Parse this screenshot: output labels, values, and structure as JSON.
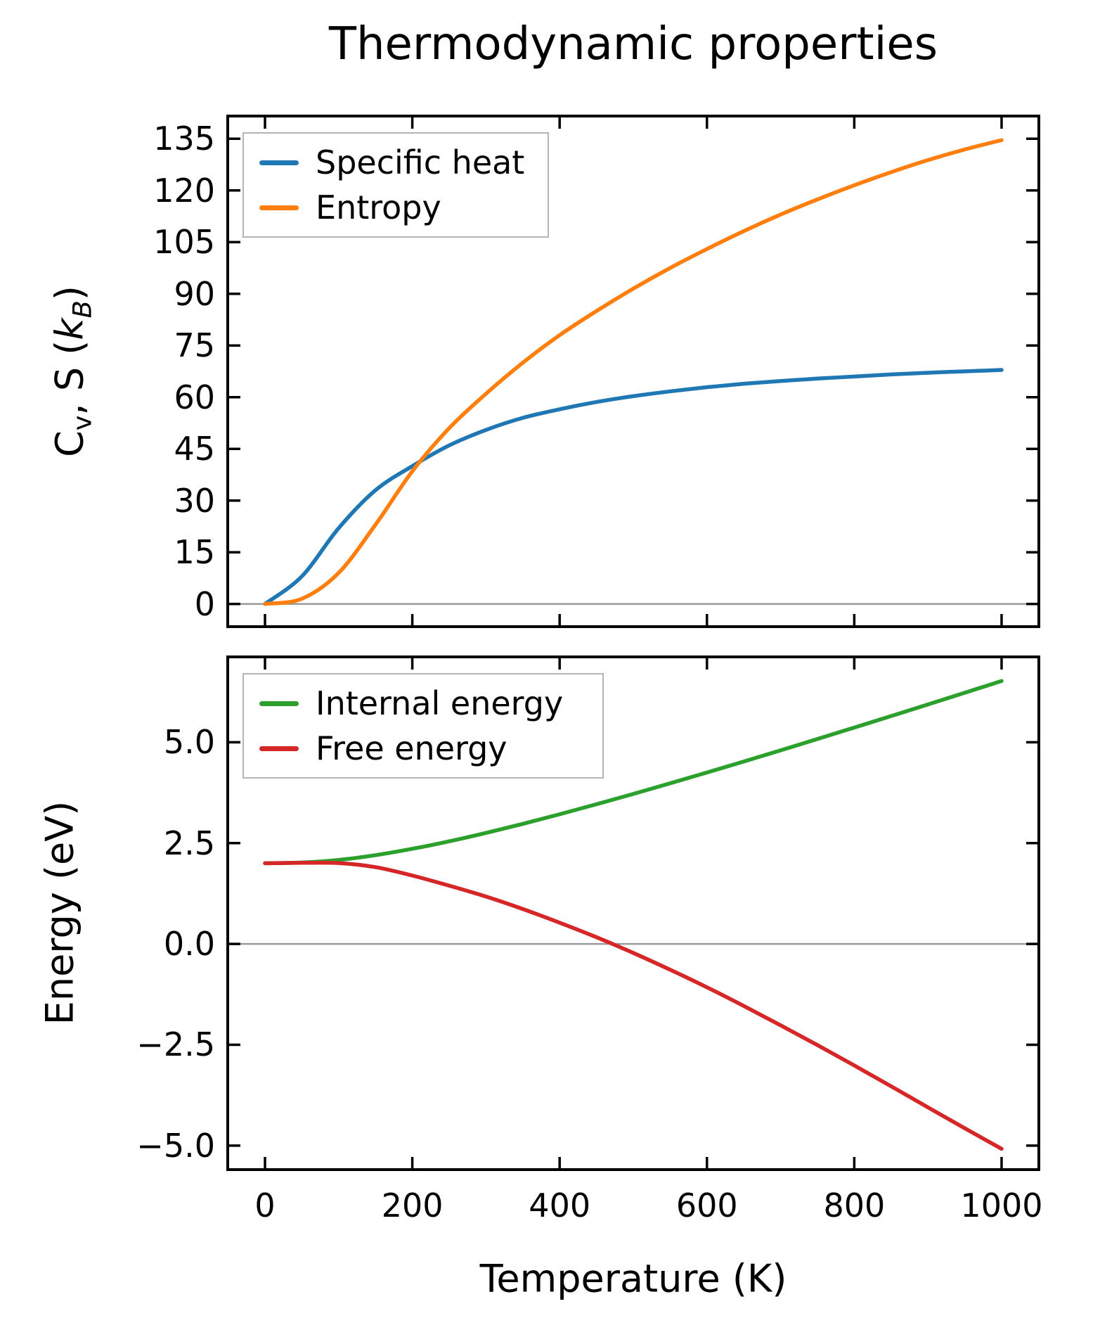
{
  "title": "Thermodynamic properties",
  "labels": {
    "xlabel": "Temperature (K)",
    "ylabel_bottom": "Energy (eV)",
    "ylabel_top": {
      "p1": "C",
      "s1": "v",
      "p2": ", S (",
      "p3": "k",
      "s2": "B",
      "p4": ")"
    }
  },
  "style_colors": {
    "spine": "#000000",
    "zero_line": "#9b9b9b",
    "legend_border": "#b4b4b4",
    "background": "#ffffff"
  },
  "chart_data": [
    {
      "type": "line",
      "title": "Thermodynamic properties",
      "xlabel": "",
      "ylabel": "C_v, S (k_B)",
      "grid": false,
      "legend_position": "upper left",
      "zero_line": true,
      "xlim": [
        -52.5,
        1052.5
      ],
      "ylim": [
        -7,
        142
      ],
      "xticks": [
        0,
        200,
        400,
        600,
        800,
        1000
      ],
      "xtick_labels": [
        "0",
        "200",
        "400",
        "600",
        "800",
        "1000"
      ],
      "xticks_labeled": false,
      "yticks": [
        0,
        15,
        30,
        45,
        60,
        75,
        90,
        105,
        120,
        135
      ],
      "ytick_labels": [
        "0",
        "15",
        "30",
        "45",
        "60",
        "75",
        "90",
        "105",
        "120",
        "135"
      ],
      "x": [
        0,
        50,
        100,
        150,
        200,
        250,
        300,
        350,
        400,
        450,
        500,
        550,
        600,
        650,
        700,
        750,
        800,
        850,
        900,
        950,
        1000
      ],
      "series": [
        {
          "name": "Specific heat",
          "color": "#1f77b4",
          "values": [
            0,
            8,
            22,
            33,
            40,
            46,
            50.5,
            54,
            56.5,
            58.6,
            60.3,
            61.7,
            62.9,
            63.9,
            64.7,
            65.4,
            66.0,
            66.6,
            67.1,
            67.5,
            67.9
          ]
        },
        {
          "name": "Entropy",
          "color": "#ff7f0e",
          "values": [
            0,
            1.5,
            9,
            23,
            38.5,
            51,
            61,
            70,
            78,
            85,
            91.5,
            97.5,
            103,
            108.2,
            113,
            117.4,
            121.5,
            125.3,
            128.8,
            131.9,
            134.6
          ]
        }
      ]
    },
    {
      "type": "line",
      "title": "",
      "xlabel": "Temperature (K)",
      "ylabel": "Energy (eV)",
      "grid": false,
      "legend_position": "upper left",
      "zero_line": true,
      "xlim": [
        -52.5,
        1052.5
      ],
      "ylim": [
        -5.63,
        7.15
      ],
      "xticks": [
        0,
        200,
        400,
        600,
        800,
        1000
      ],
      "xtick_labels": [
        "0",
        "200",
        "400",
        "600",
        "800",
        "1000"
      ],
      "xticks_labeled": true,
      "yticks": [
        -5,
        -2.5,
        0,
        2.5,
        5
      ],
      "ytick_labels": [
        "−5.0",
        "−2.5",
        "0.0",
        "2.5",
        "5.0"
      ],
      "x": [
        0,
        50,
        100,
        150,
        200,
        250,
        300,
        350,
        400,
        450,
        500,
        550,
        600,
        650,
        700,
        750,
        800,
        850,
        900,
        950,
        1000
      ],
      "series": [
        {
          "name": "Internal energy",
          "color": "#2ca02c",
          "values": [
            2.0,
            2.017,
            2.082,
            2.2,
            2.358,
            2.543,
            2.751,
            2.976,
            3.214,
            3.462,
            3.718,
            3.981,
            4.249,
            4.522,
            4.799,
            5.079,
            5.363,
            5.648,
            5.936,
            6.226,
            6.518
          ]
        },
        {
          "name": "Free energy",
          "color": "#d62728",
          "values": [
            2.0,
            2.01,
            2.004,
            1.903,
            1.695,
            1.444,
            1.174,
            0.865,
            0.526,
            0.166,
            -0.224,
            -0.64,
            -1.076,
            -1.538,
            -2.017,
            -2.508,
            -3.013,
            -3.529,
            -4.052,
            -4.57,
            -5.08
          ]
        }
      ]
    }
  ]
}
